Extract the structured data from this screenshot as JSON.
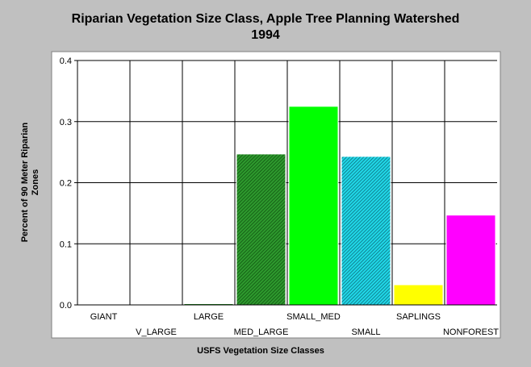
{
  "chart_data": {
    "type": "bar",
    "title": "Riparian Vegetation Size Class, Apple Tree Planning Watershed",
    "subtitle": "1994",
    "xlabel": "USFS Vegetation Size Classes",
    "ylabel_lines": [
      "Percent of 90 Meter Riparian",
      "Zones"
    ],
    "ylim": [
      0,
      0.4
    ],
    "yticks": [
      "0.0",
      "0.1",
      "0.2",
      "0.3",
      "0.4"
    ],
    "grid": true,
    "categories": [
      "GIANT",
      "V_LARGE",
      "LARGE",
      "MED_LARGE",
      "SMALL_MED",
      "SMALL",
      "SAPLINGS",
      "NONFOREST"
    ],
    "values": [
      0,
      0,
      0.002,
      0.247,
      0.325,
      0.243,
      0.033,
      0.147
    ],
    "colors": [
      "#888888",
      "#888888",
      "#1a8a1a",
      "#1e7a1e",
      "#00ff00",
      "#00b8c8",
      "#ffff00",
      "#ff00ff"
    ],
    "hatched": [
      false,
      false,
      false,
      true,
      false,
      true,
      false,
      false
    ],
    "background": "#ffffff",
    "figure_background": "#c0c0c0"
  }
}
